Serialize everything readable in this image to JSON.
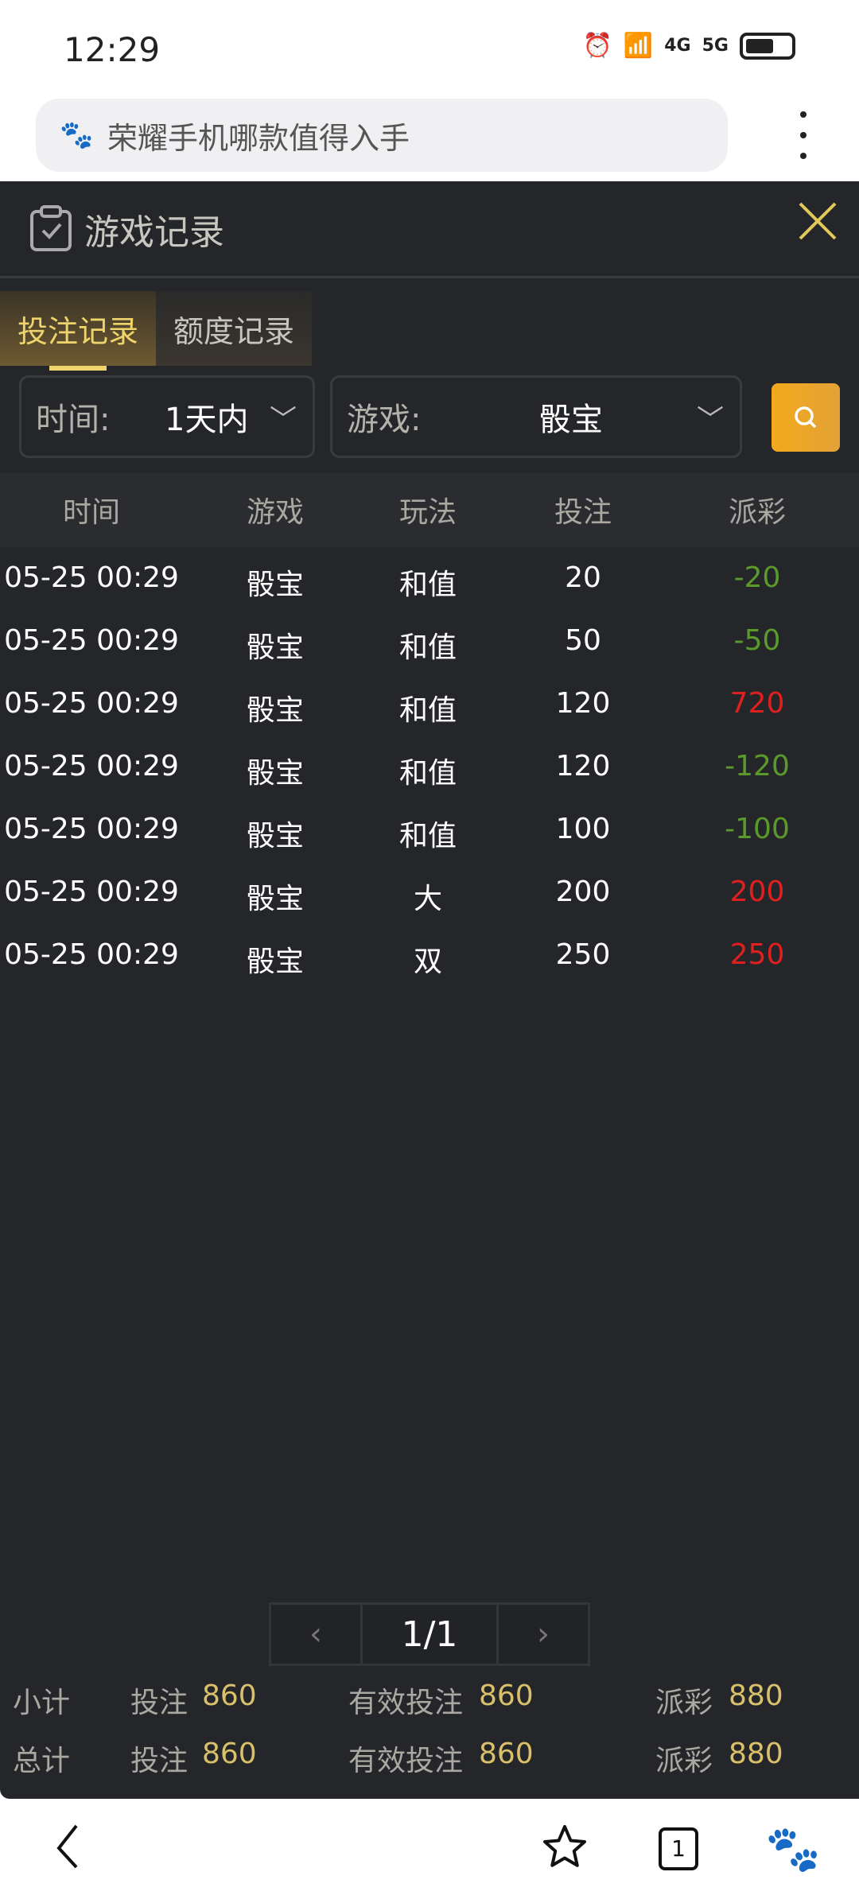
{
  "status": {
    "time": "12:29",
    "net1": "4G",
    "net2": "5G"
  },
  "browser": {
    "search_text": "荣耀手机哪款值得入手",
    "tab_count": "1"
  },
  "panel": {
    "title": "游戏记录",
    "tabs": [
      {
        "label": "投注记录",
        "active": true
      },
      {
        "label": "额度记录",
        "active": false
      }
    ],
    "filters": {
      "time_label": "时间:",
      "time_value": "1天内",
      "game_label": "游戏:",
      "game_value": "骰宝"
    },
    "columns": [
      "时间",
      "游戏",
      "玩法",
      "投注",
      "派彩"
    ],
    "rows": [
      [
        "05-25 00:29",
        "骰宝",
        "和值",
        "20",
        "-20"
      ],
      [
        "05-25 00:29",
        "骰宝",
        "和值",
        "50",
        "-50"
      ],
      [
        "05-25 00:29",
        "骰宝",
        "和值",
        "120",
        "720"
      ],
      [
        "05-25 00:29",
        "骰宝",
        "和值",
        "120",
        "-120"
      ],
      [
        "05-25 00:29",
        "骰宝",
        "和值",
        "100",
        "-100"
      ],
      [
        "05-25 00:29",
        "骰宝",
        "大",
        "200",
        "200"
      ],
      [
        "05-25 00:29",
        "骰宝",
        "双",
        "250",
        "250"
      ]
    ],
    "pager": {
      "prev": "‹",
      "page": "1/1",
      "next": "›"
    },
    "subtotal": {
      "label": "小计",
      "bet_label": "投注",
      "bet": "860",
      "valid_label": "有效投注",
      "valid": "860",
      "payout_label": "派彩",
      "payout": "880"
    },
    "total": {
      "label": "总计",
      "bet_label": "投注",
      "bet": "860",
      "valid_label": "有效投注",
      "valid": "860",
      "payout_label": "派彩",
      "payout": "880"
    }
  },
  "colors": {
    "accent": "#efd36b",
    "search_button": "#f3a91c",
    "loss": "#5a9a2a",
    "win": "#e0201f"
  }
}
